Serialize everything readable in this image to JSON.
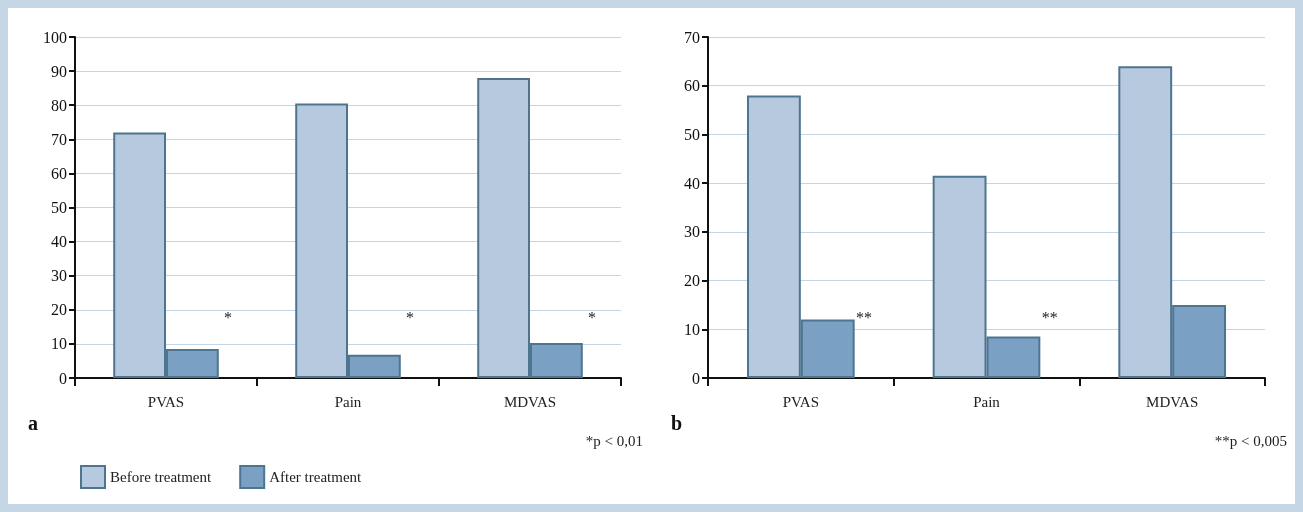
{
  "chart_data": [
    {
      "type": "bar",
      "title": "a",
      "categories": [
        "PVAS",
        "Pain",
        "MDVAS"
      ],
      "series": [
        {
          "name": "Before treatment",
          "color": "#b7c9de",
          "values": [
            72,
            80.5,
            88
          ]
        },
        {
          "name": "After treatment",
          "color": "#7aa1c3",
          "values": [
            8.5,
            6.8,
            10.3
          ]
        }
      ],
      "ylim": [
        0,
        100
      ],
      "yticks": [
        0,
        10,
        20,
        30,
        40,
        50,
        60,
        70,
        80,
        90,
        100
      ],
      "grid": "y",
      "legend": "bottom left",
      "annotations": [
        "*",
        "*",
        "*",
        "*p < 0,01"
      ]
    },
    {
      "type": "bar",
      "title": "b",
      "categories": [
        "PVAS",
        "Pain",
        "MDVAS"
      ],
      "series": [
        {
          "color": "#b7c9de",
          "values": [
            58,
            41.5,
            64
          ]
        },
        {
          "color": "#7aa1c3",
          "values": [
            12,
            8.5,
            15
          ]
        }
      ],
      "ylim": [
        0,
        70
      ],
      "yticks": [
        0,
        10,
        20,
        30,
        40,
        50,
        60,
        70
      ],
      "grid": "y",
      "annotations": [
        "**",
        "**",
        "**p < 0,005"
      ]
    }
  ]
}
